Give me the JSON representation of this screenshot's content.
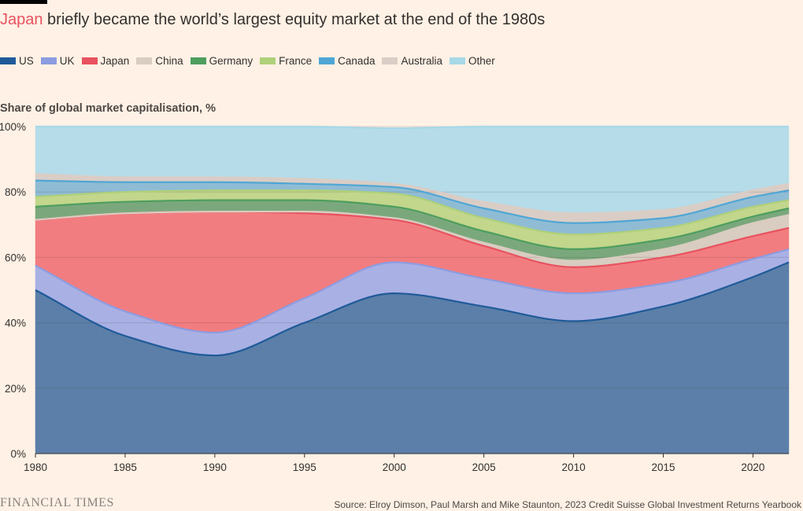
{
  "title": {
    "highlight": "Japan",
    "rest": " briefly became the world’s largest equity market at the end of the 1980s"
  },
  "footer": {
    "logo": "FINANCIAL TIMES",
    "source": "Source: Elroy Dimson, Paul Marsh and Mike Staunton, 2023 Credit Suisse Global Investment Returns Yearbook"
  },
  "chart_data": {
    "type": "area",
    "stacked": true,
    "ylabel": "Share of global market capitalisation, %",
    "xlim": [
      1980,
      2022
    ],
    "ylim": [
      0,
      100
    ],
    "x_ticks": [
      1980,
      1985,
      1990,
      1995,
      2000,
      2005,
      2010,
      2015,
      2020
    ],
    "y_ticks": [
      0,
      20,
      40,
      60,
      80,
      100
    ],
    "y_tick_labels": [
      "0%",
      "20%",
      "40%",
      "60%",
      "80%",
      "100%"
    ],
    "grid": true,
    "legend_position": "top",
    "x": [
      1980,
      1985,
      1990,
      1995,
      2000,
      2005,
      2010,
      2015,
      2020,
      2022
    ],
    "series": [
      {
        "name": "US",
        "color": "#1f5a99",
        "fill": "#5b7fa8",
        "values": [
          50,
          36,
          30,
          40,
          49,
          45,
          40.5,
          45,
          54,
          58.5
        ]
      },
      {
        "name": "UK",
        "color": "#8c9ce0",
        "fill": "#a9b0e4",
        "values": [
          7.5,
          7.5,
          7,
          7.5,
          9.5,
          8.5,
          8.5,
          7,
          5.5,
          4
        ]
      },
      {
        "name": "Japan",
        "color": "#e8525f",
        "fill": "#f27d80",
        "values": [
          14,
          30,
          37,
          26,
          13,
          10,
          8,
          8,
          7,
          6.5
        ]
      },
      {
        "name": "China",
        "color": "#d9ccc0",
        "fill": "#d9ccc0",
        "values": [
          0,
          0,
          0,
          0.5,
          0.5,
          1,
          2,
          2.5,
          4,
          4
        ]
      },
      {
        "name": "Germany",
        "color": "#4e9e5e",
        "fill": "#7aa87c",
        "values": [
          4,
          3.5,
          3.5,
          3.5,
          3.5,
          3.5,
          3.5,
          3,
          2,
          2
        ]
      },
      {
        "name": "France",
        "color": "#b0d07a",
        "fill": "#c2d68c",
        "values": [
          3,
          3,
          3,
          3,
          4,
          4,
          4.5,
          3.5,
          3,
          2.5
        ]
      },
      {
        "name": "Canada",
        "color": "#4fa6d5",
        "fill": "#8fbcd4",
        "values": [
          5,
          3,
          2.5,
          2,
          2,
          3,
          3.5,
          3,
          3,
          3
        ]
      },
      {
        "name": "Australia",
        "color": "#d9cdc6",
        "fill": "#d9cdc6",
        "values": [
          2,
          1.5,
          1.5,
          1.5,
          1,
          2,
          3,
          2.5,
          2,
          2
        ]
      },
      {
        "name": "Other",
        "color": "#a7d8e8",
        "fill": "#b5dce8",
        "values": [
          14.5,
          15.5,
          15.5,
          16,
          17,
          23,
          26.5,
          25.5,
          19.5,
          17.5
        ]
      }
    ]
  }
}
